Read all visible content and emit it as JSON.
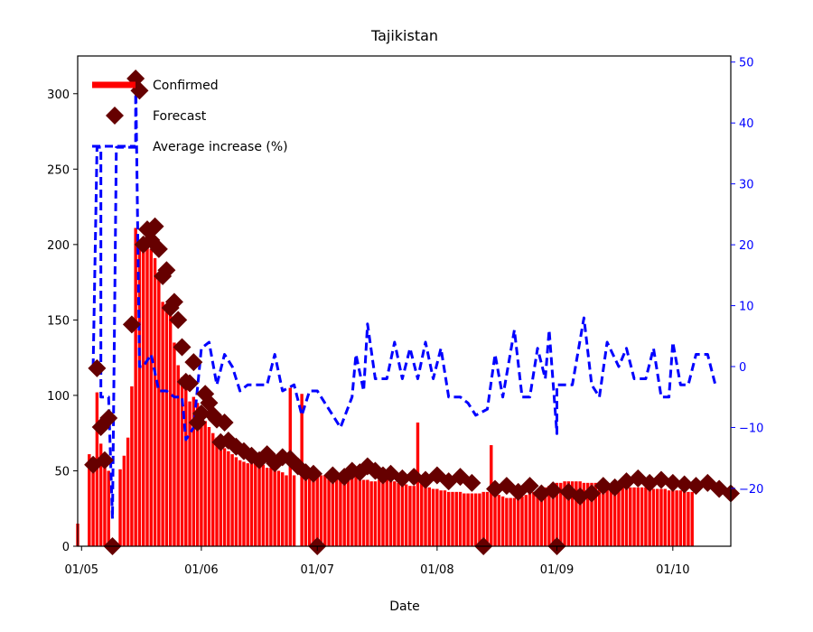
{
  "chart_data": {
    "type": "bar",
    "title": "Tajikistan",
    "xlabel": "Date",
    "ylabel": "",
    "y2label": "",
    "ylim": [
      0,
      325
    ],
    "y2lim": [
      -29.5,
      51
    ],
    "xlim": [
      "2020-04-30",
      "2020-10-16"
    ],
    "yticks": [
      0,
      50,
      100,
      150,
      200,
      250,
      300
    ],
    "y2ticks": [
      -20,
      -10,
      0,
      10,
      20,
      30,
      40,
      50
    ],
    "y2tick_labels": [
      "−20",
      "−10",
      "0",
      "10",
      "20",
      "30",
      "40",
      "50"
    ],
    "xticks": [
      {
        "date": "2020-05-01",
        "label": "01/05"
      },
      {
        "date": "2020-06-01",
        "label": "01/06"
      },
      {
        "date": "2020-07-01",
        "label": "01/07"
      },
      {
        "date": "2020-08-01",
        "label": "01/08"
      },
      {
        "date": "2020-09-01",
        "label": "01/09"
      },
      {
        "date": "2020-10-01",
        "label": "01/10"
      }
    ],
    "grid": false,
    "legend_position": "top-left",
    "legend": [
      {
        "label": "Confirmed",
        "kind": "bar",
        "color": "#ff0000"
      },
      {
        "label": "Forecast",
        "kind": "marker",
        "color": "#660000"
      },
      {
        "label": "Average increase (%)",
        "kind": "dashed-line",
        "color": "#0000ff"
      }
    ],
    "start_date": "2020-04-30",
    "series": [
      {
        "name": "Confirmed",
        "kind": "bar",
        "color": "#ff0000",
        "axis": "left",
        "values": [
          15,
          0,
          0,
          61,
          52,
          102,
          68,
          53,
          50,
          0,
          0,
          51,
          60,
          72,
          106,
          211,
          200,
          205,
          203,
          197,
          191,
          180,
          162,
          159,
          153,
          135,
          120,
          112,
          105,
          96,
          99,
          95,
          89,
          83,
          79,
          75,
          72,
          68,
          65,
          63,
          61,
          59,
          57,
          56,
          55,
          56,
          57,
          56,
          54,
          52,
          52,
          51,
          50,
          49,
          47,
          105,
          47,
          0,
          101,
          53,
          49,
          47,
          46,
          47,
          47,
          46,
          47,
          48,
          48,
          47,
          46,
          45,
          46,
          45,
          44,
          44,
          43,
          43,
          44,
          44,
          45,
          44,
          43,
          42,
          42,
          41,
          40,
          40,
          82,
          44,
          40,
          39,
          38,
          38,
          37,
          37,
          36,
          36,
          36,
          36,
          35,
          35,
          35,
          35,
          35,
          36,
          36,
          67,
          35,
          34,
          33,
          32,
          32,
          32,
          32,
          33,
          34,
          35,
          36,
          37,
          38,
          39,
          40,
          41,
          42,
          42,
          43,
          43,
          43,
          43,
          43,
          42,
          42,
          42,
          42,
          41,
          41,
          41,
          41,
          40,
          40,
          40,
          40,
          39,
          39,
          39,
          39,
          39,
          38,
          38,
          38,
          38,
          38,
          37,
          37,
          37,
          37,
          37,
          36,
          36
        ]
      },
      {
        "name": "Forecast",
        "kind": "marker",
        "color": "#660000",
        "axis": "left",
        "points": [
          {
            "x": "2020-05-04",
            "y": 54
          },
          {
            "x": "2020-05-05",
            "y": 118
          },
          {
            "x": "2020-05-06",
            "y": 79
          },
          {
            "x": "2020-05-07",
            "y": 57
          },
          {
            "x": "2020-05-08",
            "y": 85
          },
          {
            "x": "2020-05-09",
            "y": 0
          },
          {
            "x": "2020-05-14",
            "y": 147
          },
          {
            "x": "2020-05-15",
            "y": 310
          },
          {
            "x": "2020-05-16",
            "y": 302
          },
          {
            "x": "2020-05-17",
            "y": 200
          },
          {
            "x": "2020-05-18",
            "y": 210
          },
          {
            "x": "2020-05-19",
            "y": 203
          },
          {
            "x": "2020-05-20",
            "y": 212
          },
          {
            "x": "2020-05-21",
            "y": 197
          },
          {
            "x": "2020-05-22",
            "y": 179
          },
          {
            "x": "2020-05-23",
            "y": 183
          },
          {
            "x": "2020-05-24",
            "y": 158
          },
          {
            "x": "2020-05-25",
            "y": 162
          },
          {
            "x": "2020-05-26",
            "y": 150
          },
          {
            "x": "2020-05-27",
            "y": 132
          },
          {
            "x": "2020-05-28",
            "y": 109
          },
          {
            "x": "2020-05-29",
            "y": 108
          },
          {
            "x": "2020-05-30",
            "y": 122
          },
          {
            "x": "2020-05-31",
            "y": 82
          },
          {
            "x": "2020-06-01",
            "y": 88
          },
          {
            "x": "2020-06-02",
            "y": 101
          },
          {
            "x": "2020-06-03",
            "y": 95
          },
          {
            "x": "2020-06-04",
            "y": 87
          },
          {
            "x": "2020-06-05",
            "y": 84
          },
          {
            "x": "2020-06-06",
            "y": 69
          },
          {
            "x": "2020-06-07",
            "y": 82
          },
          {
            "x": "2020-06-08",
            "y": 70
          },
          {
            "x": "2020-06-10",
            "y": 66
          },
          {
            "x": "2020-06-12",
            "y": 63
          },
          {
            "x": "2020-06-14",
            "y": 60
          },
          {
            "x": "2020-06-16",
            "y": 57
          },
          {
            "x": "2020-06-18",
            "y": 61
          },
          {
            "x": "2020-06-20",
            "y": 55
          },
          {
            "x": "2020-06-22",
            "y": 59
          },
          {
            "x": "2020-06-24",
            "y": 58
          },
          {
            "x": "2020-06-26",
            "y": 53
          },
          {
            "x": "2020-06-28",
            "y": 49
          },
          {
            "x": "2020-06-30",
            "y": 48
          },
          {
            "x": "2020-07-01",
            "y": 0
          },
          {
            "x": "2020-07-05",
            "y": 47
          },
          {
            "x": "2020-07-08",
            "y": 46
          },
          {
            "x": "2020-07-10",
            "y": 50
          },
          {
            "x": "2020-07-12",
            "y": 49
          },
          {
            "x": "2020-07-14",
            "y": 53
          },
          {
            "x": "2020-07-16",
            "y": 50
          },
          {
            "x": "2020-07-18",
            "y": 47
          },
          {
            "x": "2020-07-20",
            "y": 48
          },
          {
            "x": "2020-07-23",
            "y": 45
          },
          {
            "x": "2020-07-26",
            "y": 46
          },
          {
            "x": "2020-07-29",
            "y": 44
          },
          {
            "x": "2020-08-01",
            "y": 47
          },
          {
            "x": "2020-08-04",
            "y": 43
          },
          {
            "x": "2020-08-07",
            "y": 46
          },
          {
            "x": "2020-08-10",
            "y": 42
          },
          {
            "x": "2020-08-13",
            "y": 0
          },
          {
            "x": "2020-08-16",
            "y": 38
          },
          {
            "x": "2020-08-19",
            "y": 40
          },
          {
            "x": "2020-08-22",
            "y": 36
          },
          {
            "x": "2020-08-25",
            "y": 40
          },
          {
            "x": "2020-08-28",
            "y": 35
          },
          {
            "x": "2020-08-31",
            "y": 37
          },
          {
            "x": "2020-09-01",
            "y": 0
          },
          {
            "x": "2020-09-04",
            "y": 36
          },
          {
            "x": "2020-09-07",
            "y": 33
          },
          {
            "x": "2020-09-10",
            "y": 35
          },
          {
            "x": "2020-09-13",
            "y": 40
          },
          {
            "x": "2020-09-16",
            "y": 39
          },
          {
            "x": "2020-09-19",
            "y": 43
          },
          {
            "x": "2020-09-22",
            "y": 45
          },
          {
            "x": "2020-09-25",
            "y": 42
          },
          {
            "x": "2020-09-28",
            "y": 44
          },
          {
            "x": "2020-10-01",
            "y": 42
          },
          {
            "x": "2020-10-04",
            "y": 41
          },
          {
            "x": "2020-10-07",
            "y": 40
          },
          {
            "x": "2020-10-10",
            "y": 42
          },
          {
            "x": "2020-10-13",
            "y": 38
          },
          {
            "x": "2020-10-16",
            "y": 35
          }
        ]
      },
      {
        "name": "Average increase (%)",
        "kind": "dashed-line",
        "color": "#0000ff",
        "axis": "right",
        "points": [
          {
            "x": "2020-05-01",
            "y": null
          },
          {
            "x": "2020-05-04",
            "y": 0
          },
          {
            "x": "2020-05-05",
            "y": 36
          },
          {
            "x": "2020-05-06",
            "y": 36
          },
          {
            "x": "2020-05-06",
            "y": -5
          },
          {
            "x": "2020-05-08",
            "y": -5
          },
          {
            "x": "2020-05-09",
            "y": -25
          },
          {
            "x": "2020-05-10",
            "y": 36
          },
          {
            "x": "2020-05-15",
            "y": 36
          },
          {
            "x": "2020-05-15",
            "y": 48
          },
          {
            "x": "2020-05-16",
            "y": 0
          },
          {
            "x": "2020-05-17",
            "y": 0
          },
          {
            "x": "2020-05-19",
            "y": 2
          },
          {
            "x": "2020-05-21",
            "y": -4
          },
          {
            "x": "2020-05-23",
            "y": -4
          },
          {
            "x": "2020-05-25",
            "y": -5
          },
          {
            "x": "2020-05-27",
            "y": -5
          },
          {
            "x": "2020-05-28",
            "y": -12
          },
          {
            "x": "2020-05-30",
            "y": -10
          },
          {
            "x": "2020-06-01",
            "y": 3
          },
          {
            "x": "2020-06-03",
            "y": 4
          },
          {
            "x": "2020-06-05",
            "y": -3
          },
          {
            "x": "2020-06-07",
            "y": 2
          },
          {
            "x": "2020-06-09",
            "y": 0
          },
          {
            "x": "2020-06-11",
            "y": -4
          },
          {
            "x": "2020-06-13",
            "y": -3
          },
          {
            "x": "2020-06-15",
            "y": -3
          },
          {
            "x": "2020-06-18",
            "y": -3
          },
          {
            "x": "2020-06-20",
            "y": 2
          },
          {
            "x": "2020-06-22",
            "y": -4
          },
          {
            "x": "2020-06-25",
            "y": -3
          },
          {
            "x": "2020-06-27",
            "y": -8
          },
          {
            "x": "2020-06-29",
            "y": -4
          },
          {
            "x": "2020-07-01",
            "y": -4
          },
          {
            "x": "2020-07-07",
            "y": -10
          },
          {
            "x": "2020-07-10",
            "y": -5
          },
          {
            "x": "2020-07-11",
            "y": 2
          },
          {
            "x": "2020-07-13",
            "y": -4
          },
          {
            "x": "2020-07-14",
            "y": 7
          },
          {
            "x": "2020-07-16",
            "y": -2
          },
          {
            "x": "2020-07-19",
            "y": -2
          },
          {
            "x": "2020-07-21",
            "y": 4
          },
          {
            "x": "2020-07-23",
            "y": -2
          },
          {
            "x": "2020-07-25",
            "y": 3
          },
          {
            "x": "2020-07-27",
            "y": -2
          },
          {
            "x": "2020-07-29",
            "y": 4
          },
          {
            "x": "2020-07-31",
            "y": -2
          },
          {
            "x": "2020-08-02",
            "y": 3
          },
          {
            "x": "2020-08-04",
            "y": -5
          },
          {
            "x": "2020-08-07",
            "y": -5
          },
          {
            "x": "2020-08-09",
            "y": -6
          },
          {
            "x": "2020-08-11",
            "y": -8
          },
          {
            "x": "2020-08-14",
            "y": -7
          },
          {
            "x": "2020-08-16",
            "y": 2
          },
          {
            "x": "2020-08-18",
            "y": -5
          },
          {
            "x": "2020-08-21",
            "y": 6
          },
          {
            "x": "2020-08-23",
            "y": -5
          },
          {
            "x": "2020-08-25",
            "y": -5
          },
          {
            "x": "2020-08-27",
            "y": 3
          },
          {
            "x": "2020-08-29",
            "y": -2
          },
          {
            "x": "2020-08-30",
            "y": 6
          },
          {
            "x": "2020-09-01",
            "y": -11
          },
          {
            "x": "2020-09-01",
            "y": -3
          },
          {
            "x": "2020-09-05",
            "y": -3
          },
          {
            "x": "2020-09-08",
            "y": 8
          },
          {
            "x": "2020-09-10",
            "y": -3
          },
          {
            "x": "2020-09-12",
            "y": -5
          },
          {
            "x": "2020-09-14",
            "y": 4
          },
          {
            "x": "2020-09-17",
            "y": 0
          },
          {
            "x": "2020-09-19",
            "y": 3
          },
          {
            "x": "2020-09-21",
            "y": -2
          },
          {
            "x": "2020-09-24",
            "y": -2
          },
          {
            "x": "2020-09-26",
            "y": 3
          },
          {
            "x": "2020-09-28",
            "y": -5
          },
          {
            "x": "2020-09-30",
            "y": -5
          },
          {
            "x": "2020-10-01",
            "y": 4
          },
          {
            "x": "2020-10-03",
            "y": -3
          },
          {
            "x": "2020-10-05",
            "y": -3
          },
          {
            "x": "2020-10-07",
            "y": 2
          },
          {
            "x": "2020-10-10",
            "y": 2
          },
          {
            "x": "2020-10-12",
            "y": -3
          }
        ]
      }
    ]
  }
}
